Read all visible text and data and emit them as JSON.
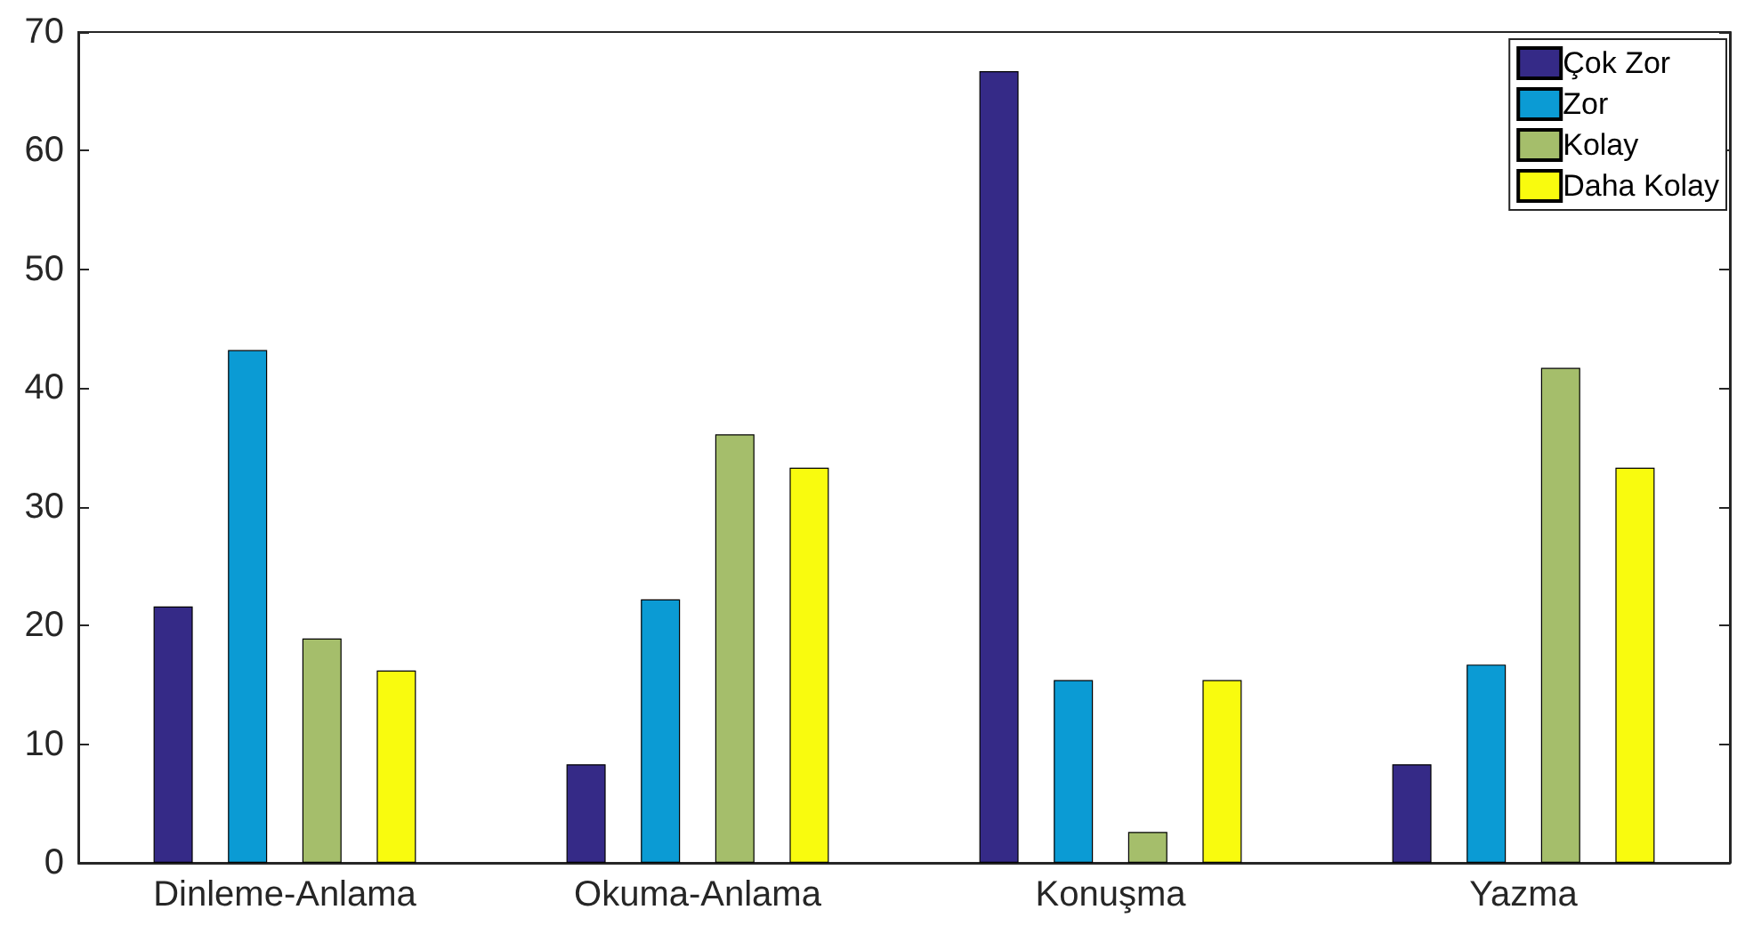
{
  "chart_data": {
    "type": "bar",
    "categories": [
      "Dinleme-Anlama",
      "Okuma-Anlama",
      "Konuşma",
      "Yazma"
    ],
    "series": [
      {
        "name": "Çok Zor",
        "color": "#352a87",
        "values": [
          21.6,
          8.3,
          66.7,
          8.3
        ]
      },
      {
        "name": "Zor",
        "color": "#0b9bd4",
        "values": [
          43.2,
          22.2,
          15.4,
          16.7
        ]
      },
      {
        "name": "Kolay",
        "color": "#a5be6b",
        "values": [
          18.9,
          36.1,
          2.6,
          41.7
        ]
      },
      {
        "name": "Daha Kolay",
        "color": "#f9fb0e",
        "values": [
          16.2,
          33.3,
          15.4,
          33.3
        ]
      }
    ],
    "ylim": [
      0,
      70
    ],
    "yticks": [
      0,
      10,
      20,
      30,
      40,
      50,
      60,
      70
    ],
    "grid": false,
    "legend": "top right"
  }
}
